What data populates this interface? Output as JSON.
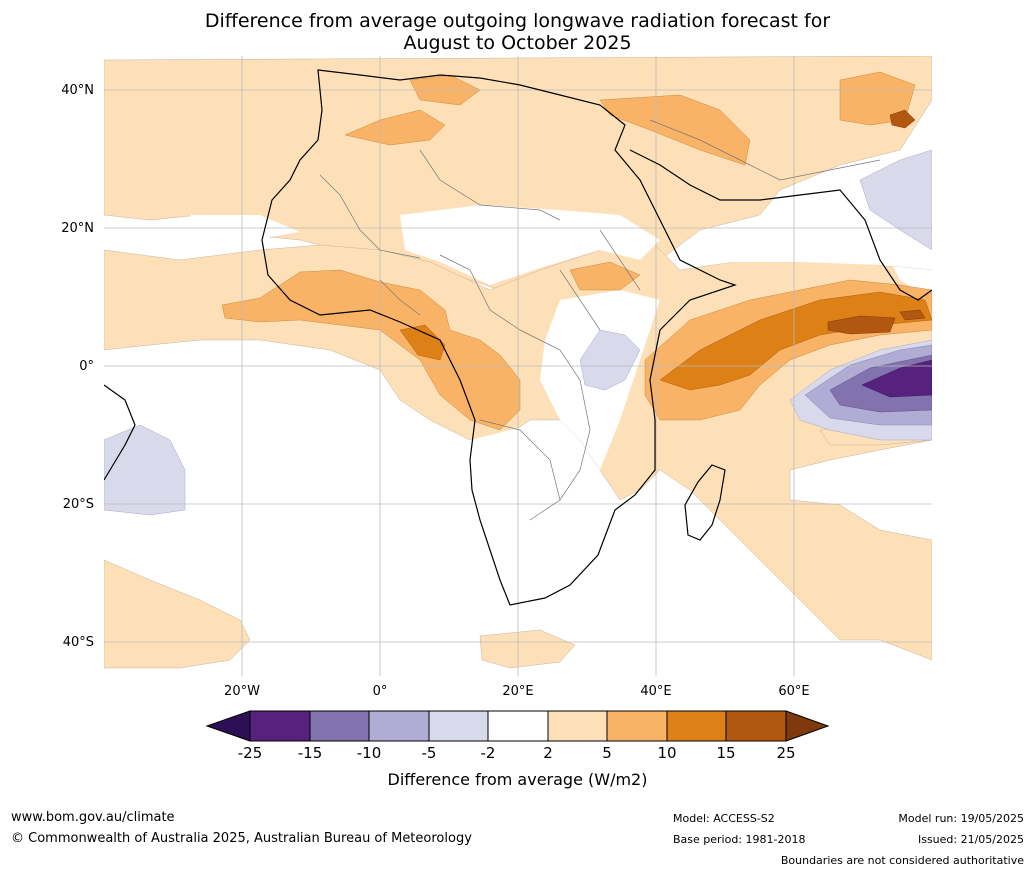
{
  "title": {
    "line1": "Difference from average outgoing longwave radiation forecast for",
    "line2": "August to October 2025"
  },
  "map": {
    "lat_labels": [
      "40°N",
      "20°N",
      "0°",
      "20°S",
      "40°S"
    ],
    "lon_labels": [
      "20°W",
      "0°",
      "20°E",
      "40°E",
      "60°E"
    ]
  },
  "colorbar": {
    "title": "Difference from average (W/m2)",
    "ticks": [
      "-25",
      "-15",
      "-10",
      "-5",
      "-2",
      "2",
      "5",
      "10",
      "15",
      "25"
    ],
    "colors": [
      "#2d0f57",
      "#56227e",
      "#8272ae",
      "#b1acd3",
      "#d9d9ec",
      "#ffffff",
      "#fde0b8",
      "#f9b366",
      "#dd8016",
      "#b25710",
      "#7e3a0a"
    ]
  },
  "footer": {
    "url": "www.bom.gov.au/climate",
    "copyright": "© Commonwealth of Australia 2025, Australian Bureau of Meteorology",
    "model": "Model: ACCESS-S2",
    "base_period": "Base period: 1981-2018",
    "model_run": "Model run: 19/05/2025",
    "issued": "Issued: 21/05/2025",
    "disclaimer": "Boundaries are not considered authoritative"
  }
}
